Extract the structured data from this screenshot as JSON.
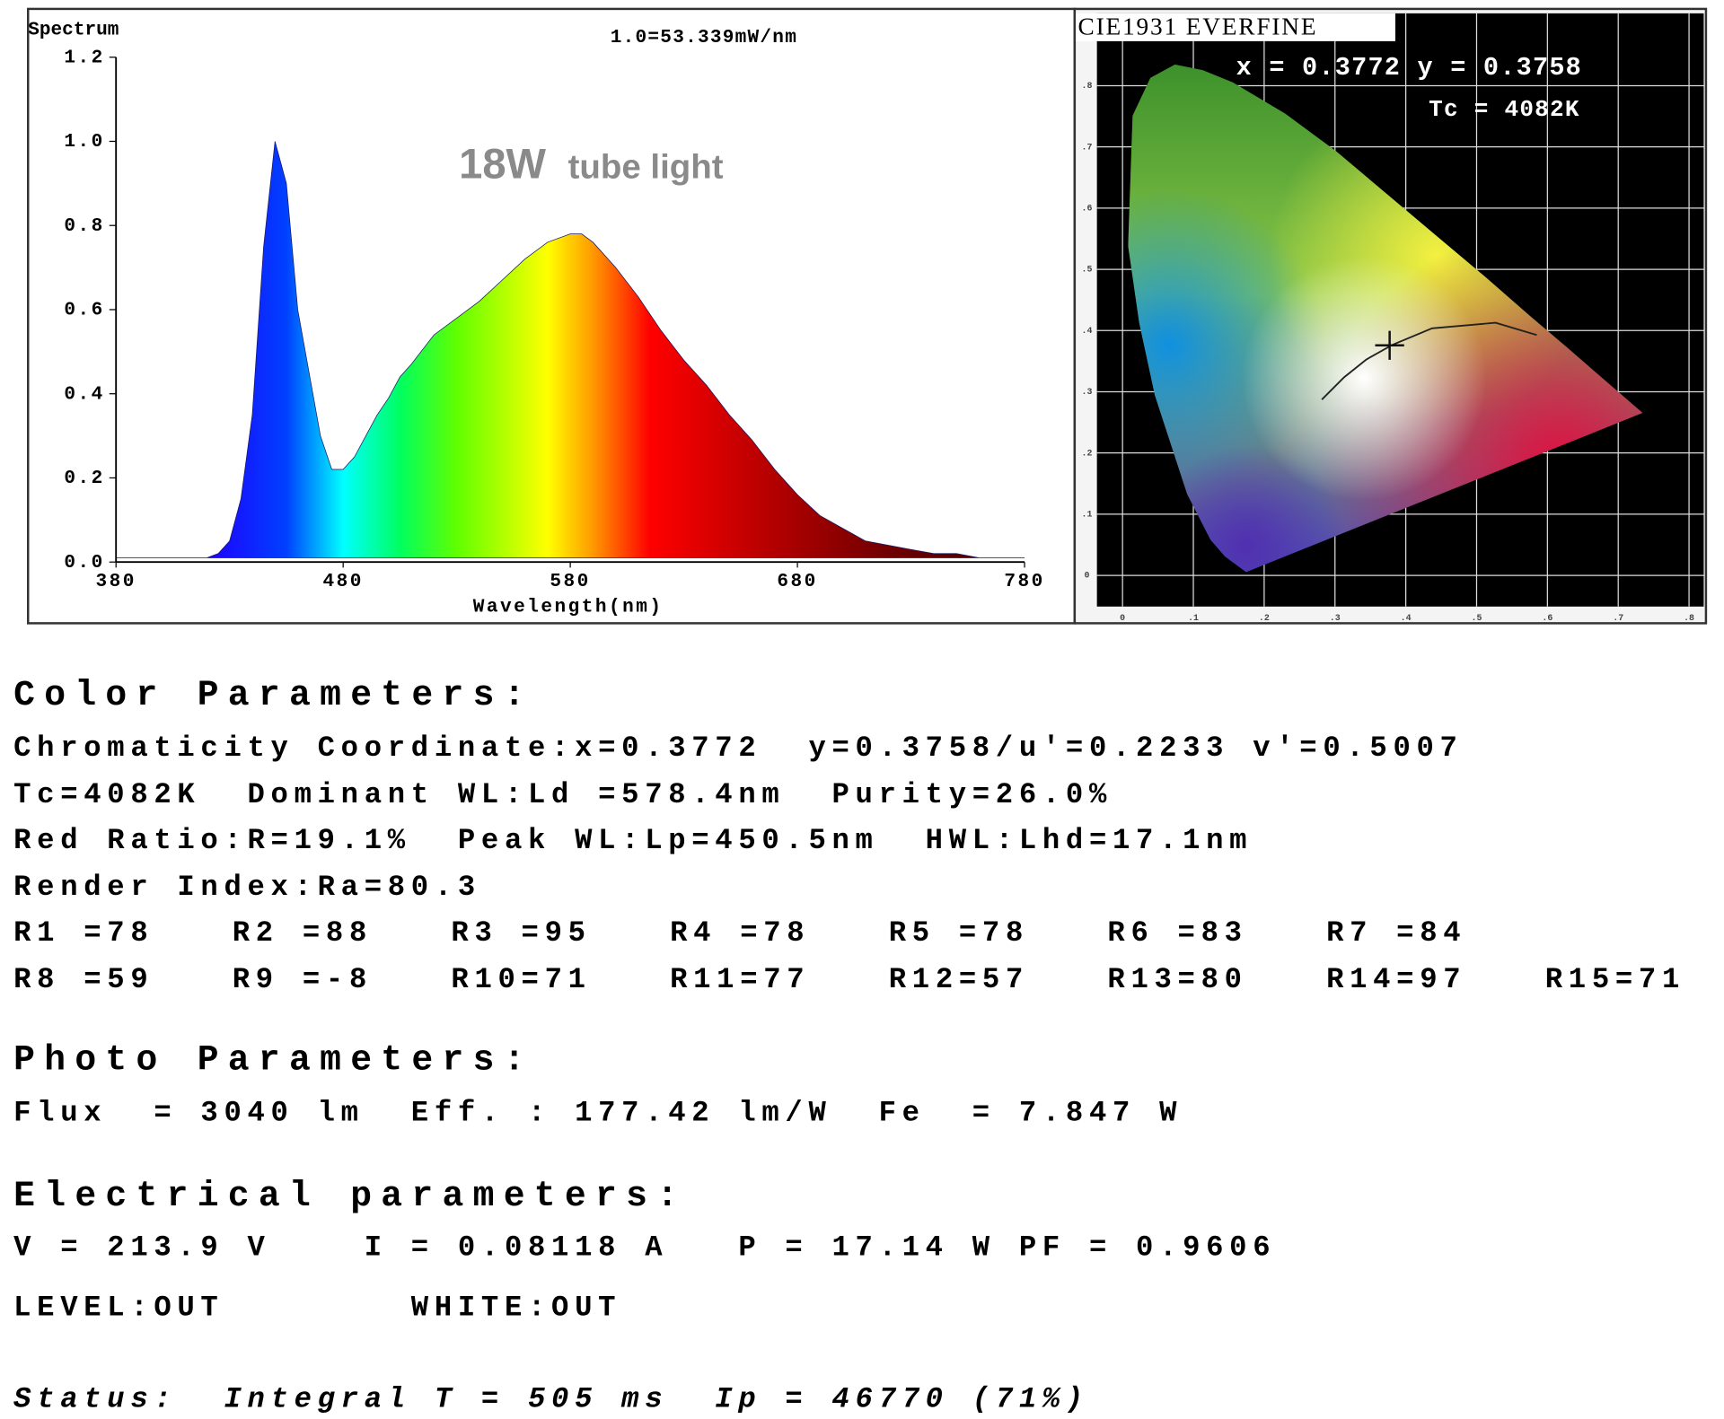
{
  "chart_data": [
    {
      "type": "area",
      "title": "Spectrum",
      "subtitle": "1.0=53.339mW/nm",
      "annotations": [
        "18W",
        "tube light"
      ],
      "x_label": "Wavelength(nm)",
      "x": [
        380,
        390,
        400,
        410,
        420,
        425,
        430,
        435,
        440,
        445,
        450,
        455,
        460,
        465,
        470,
        475,
        480,
        485,
        490,
        495,
        500,
        505,
        510,
        520,
        530,
        540,
        550,
        560,
        570,
        580,
        585,
        590,
        600,
        610,
        620,
        630,
        640,
        650,
        660,
        670,
        680,
        690,
        700,
        710,
        720,
        730,
        740,
        750,
        760,
        770,
        780
      ],
      "values": [
        0.01,
        0.01,
        0.01,
        0.01,
        0.01,
        0.02,
        0.05,
        0.15,
        0.35,
        0.75,
        1.0,
        0.9,
        0.6,
        0.45,
        0.3,
        0.22,
        0.22,
        0.25,
        0.3,
        0.35,
        0.39,
        0.44,
        0.47,
        0.54,
        0.58,
        0.62,
        0.67,
        0.72,
        0.76,
        0.78,
        0.78,
        0.76,
        0.7,
        0.63,
        0.55,
        0.48,
        0.42,
        0.35,
        0.29,
        0.22,
        0.16,
        0.11,
        0.08,
        0.05,
        0.04,
        0.03,
        0.02,
        0.02,
        0.01,
        0.01,
        0.01
      ],
      "xlim": [
        380,
        780
      ],
      "xticks": [
        380,
        480,
        580,
        680,
        780
      ],
      "ylim": [
        0,
        1.2
      ],
      "yticks": [
        {
          "value": 0,
          "label": "0.0"
        },
        0.2,
        0.4,
        0.6,
        0.8,
        {
          "value": 1,
          "label": "1.0"
        },
        1.2
      ]
    },
    {
      "type": "scatter",
      "title": "CIE1931 EVERFINE",
      "annotations": [
        "x = 0.3772 y = 0.3758",
        "Tc = 4082K"
      ],
      "x": [
        0.3772
      ],
      "values": [
        0.3758
      ],
      "xlim": [
        0,
        0.8
      ],
      "xticks": [
        0,
        {
          "value": 0.1,
          "label": ".1"
        },
        {
          "value": 0.2,
          "label": ".2"
        },
        {
          "value": 0.3,
          "label": ".3"
        },
        {
          "value": 0.4,
          "label": ".4"
        },
        {
          "value": 0.5,
          "label": ".5"
        },
        {
          "value": 0.6,
          "label": ".6"
        },
        {
          "value": 0.7,
          "label": ".7"
        },
        {
          "value": 0.8,
          "label": ".8"
        }
      ],
      "ylim": [
        0,
        0.9
      ],
      "yticks": [
        0,
        {
          "value": 0.1,
          "label": ".1"
        },
        {
          "value": 0.2,
          "label": ".2"
        },
        {
          "value": 0.3,
          "label": ".3"
        },
        {
          "value": 0.4,
          "label": ".4"
        },
        {
          "value": 0.5,
          "label": ".5"
        },
        {
          "value": 0.6,
          "label": ".6"
        },
        {
          "value": 0.7,
          "label": ".7"
        },
        {
          "value": 0.8,
          "label": ".8"
        }
      ],
      "grid": true
    }
  ],
  "color_parameters": {
    "title": "Color Parameters:",
    "lines": [
      "Chromaticity Coordinate:x=0.3772  y=0.3758/u'=0.2233 v'=0.5007",
      "Tc=4082K  Dominant WL:Ld =578.4nm  Purity=26.0%",
      "Red Ratio:R=19.1%  Peak WL:Lp=450.5nm  HWL:Lhd=17.1nm",
      "Render Index:Ra=80.3"
    ],
    "render_indices": [
      "R1 =78",
      "R2 =88",
      "R3 =95",
      "R4 =78",
      "R5 =78",
      "R6 =83",
      "R7 =84",
      "R8 =59",
      "R9 =-8",
      "R10=71",
      "R11=77",
      "R12=57",
      "R13=80",
      "R14=97",
      "R15=71"
    ]
  },
  "photo_parameters": {
    "title": "Photo Parameters:",
    "lines": [
      "Flux  = 3040 lm  Eff. : 177.42 lm/W  Fe  = 7.847 W"
    ]
  },
  "electrical_parameters": {
    "title": "Electrical parameters:",
    "lines": [
      "V = 213.9 V    I = 0.08118 A   P = 17.14 W PF = 0.9606",
      "LEVEL:OUT        WHITE:OUT"
    ]
  },
  "status": "Status:  Integral T = 505 ms  Ip = 46770 (71%)"
}
